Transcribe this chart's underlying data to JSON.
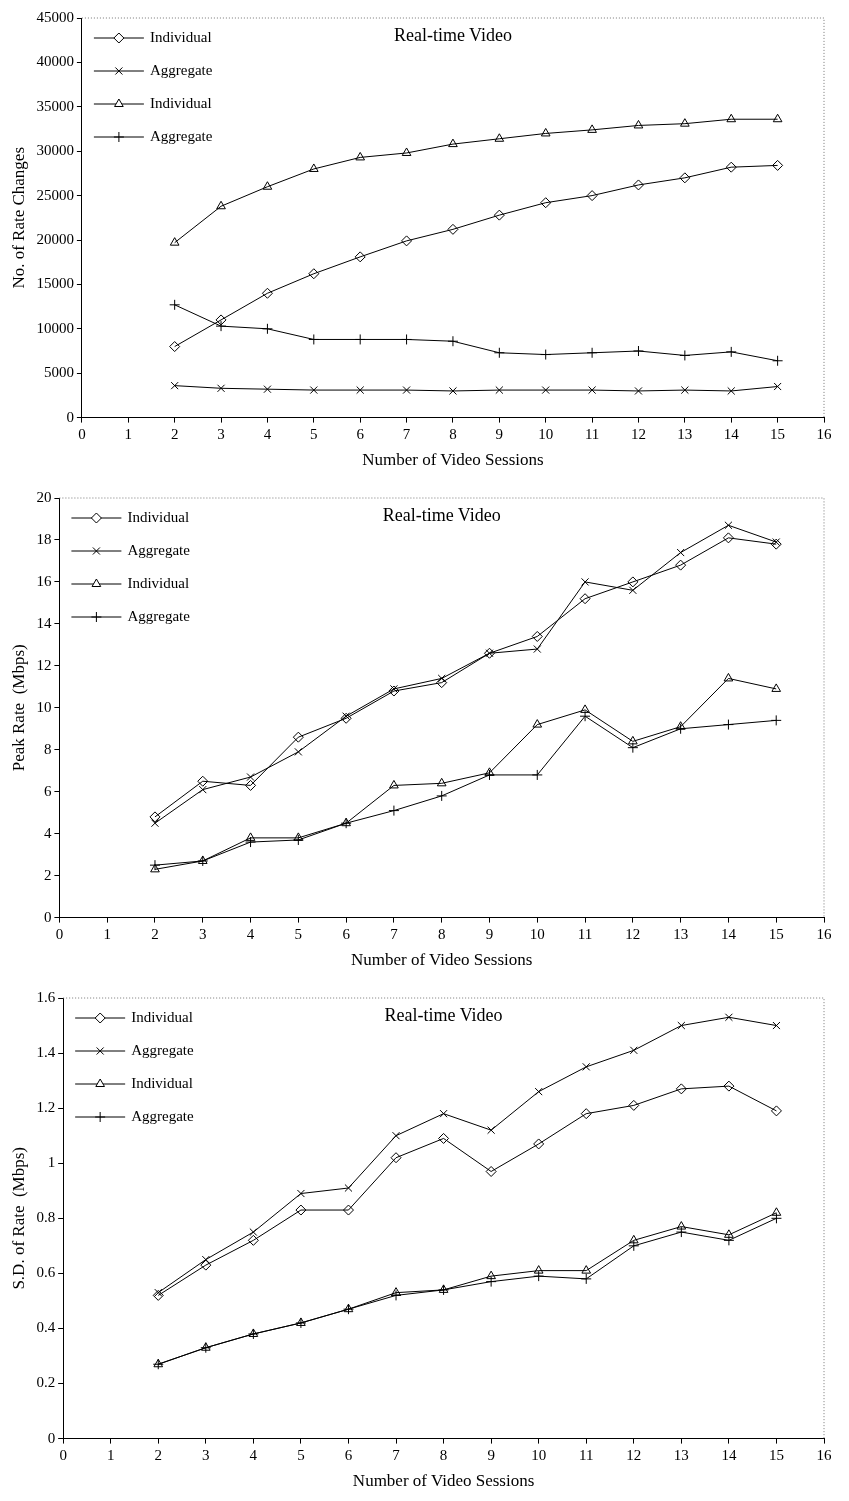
{
  "chart_data": [
    {
      "type": "line",
      "title": "Real-time Video",
      "xlabel": "Number of Video Sessions",
      "ylabel": "No. of Rate Changes",
      "x": [
        2,
        3,
        4,
        5,
        6,
        7,
        8,
        9,
        10,
        11,
        12,
        13,
        14,
        15
      ],
      "xlim": [
        0,
        16
      ],
      "xticks": [
        0,
        1,
        2,
        3,
        4,
        5,
        6,
        7,
        8,
        9,
        10,
        11,
        12,
        13,
        14,
        15,
        16
      ],
      "ylim": [
        0,
        45000
      ],
      "yticks": [
        0,
        5000,
        10000,
        15000,
        20000,
        25000,
        30000,
        35000,
        40000,
        45000
      ],
      "grid": false,
      "legend": "top left",
      "line_style": "solid",
      "series": [
        {
          "name": "Individual",
          "color": "#000000",
          "marker": "diamond",
          "values": [
            8000,
            11000,
            14000,
            16200,
            18100,
            19900,
            21200,
            22800,
            24200,
            25000,
            26200,
            27000,
            28200,
            28400
          ]
        },
        {
          "name": "Aggregate",
          "color": "#000000",
          "marker": "x",
          "values": [
            3600,
            3300,
            3200,
            3100,
            3100,
            3100,
            3000,
            3100,
            3100,
            3100,
            3000,
            3100,
            3000,
            3500
          ]
        },
        {
          "name": "Individual",
          "color": "#000000",
          "marker": "triangle",
          "values": [
            19700,
            23800,
            26000,
            28000,
            29300,
            29800,
            30800,
            31400,
            32000,
            32400,
            32900,
            33100,
            33600,
            33600
          ]
        },
        {
          "name": "Aggregate",
          "color": "#000000",
          "marker": "cross",
          "values": [
            12700,
            10300,
            10000,
            8800,
            8800,
            8800,
            8600,
            7300,
            7100,
            7300,
            7500,
            7000,
            7400,
            6400
          ]
        }
      ]
    },
    {
      "type": "line",
      "title": "Real-time Video",
      "xlabel": "Number of Video Sessions",
      "ylabel": "Peak Rate  (Mbps)",
      "x": [
        2,
        3,
        4,
        5,
        6,
        7,
        8,
        9,
        10,
        11,
        12,
        13,
        14,
        15
      ],
      "xlim": [
        0,
        16
      ],
      "xticks": [
        0,
        1,
        2,
        3,
        4,
        5,
        6,
        7,
        8,
        9,
        10,
        11,
        12,
        13,
        14,
        15,
        16
      ],
      "ylim": [
        0,
        20
      ],
      "yticks": [
        0,
        2,
        4,
        6,
        8,
        10,
        12,
        14,
        16,
        18,
        20
      ],
      "grid": false,
      "legend": "top left",
      "line_style": "solid",
      "series": [
        {
          "name": "Individual",
          "color": "#000000",
          "marker": "diamond",
          "values": [
            4.8,
            6.5,
            6.3,
            8.6,
            9.5,
            10.8,
            11.2,
            12.6,
            13.4,
            15.2,
            16.0,
            16.8,
            18.1,
            17.8
          ]
        },
        {
          "name": "Aggregate",
          "color": "#000000",
          "marker": "x",
          "values": [
            4.5,
            6.1,
            6.7,
            7.9,
            9.6,
            10.9,
            11.4,
            12.6,
            12.8,
            16.0,
            15.6,
            17.4,
            18.7,
            17.9
          ]
        },
        {
          "name": "Individual",
          "color": "#000000",
          "marker": "triangle",
          "values": [
            2.3,
            2.7,
            3.8,
            3.8,
            4.5,
            6.3,
            6.4,
            6.9,
            9.2,
            9.9,
            8.4,
            9.1,
            11.4,
            10.9
          ]
        },
        {
          "name": "Aggregate",
          "color": "#000000",
          "marker": "cross",
          "values": [
            2.5,
            2.7,
            3.6,
            3.7,
            4.5,
            5.1,
            5.8,
            6.8,
            6.8,
            9.6,
            8.1,
            9.0,
            9.2,
            9.4
          ]
        }
      ]
    },
    {
      "type": "line",
      "title": "Real-time Video",
      "xlabel": "Number of Video Sessions",
      "ylabel": "S.D. of Rate  (Mbps)",
      "x": [
        2,
        3,
        4,
        5,
        6,
        7,
        8,
        9,
        10,
        11,
        12,
        13,
        14,
        15
      ],
      "xlim": [
        0,
        16
      ],
      "xticks": [
        0,
        1,
        2,
        3,
        4,
        5,
        6,
        7,
        8,
        9,
        10,
        11,
        12,
        13,
        14,
        15,
        16
      ],
      "ylim": [
        0,
        1.6
      ],
      "yticks": [
        0,
        0.2,
        0.4,
        0.6,
        0.8,
        1,
        1.2,
        1.4,
        1.6
      ],
      "grid": false,
      "legend": "top left",
      "line_style": "solid",
      "series": [
        {
          "name": "Individual",
          "color": "#000000",
          "marker": "diamond",
          "values": [
            0.52,
            0.63,
            0.72,
            0.83,
            0.83,
            1.02,
            1.09,
            0.97,
            1.07,
            1.18,
            1.21,
            1.27,
            1.28,
            1.19
          ]
        },
        {
          "name": "Aggregate",
          "color": "#000000",
          "marker": "x",
          "values": [
            0.53,
            0.65,
            0.75,
            0.89,
            0.91,
            1.1,
            1.18,
            1.12,
            1.26,
            1.35,
            1.41,
            1.5,
            1.53,
            1.5
          ]
        },
        {
          "name": "Individual",
          "color": "#000000",
          "marker": "triangle",
          "values": [
            0.27,
            0.33,
            0.38,
            0.42,
            0.47,
            0.53,
            0.54,
            0.59,
            0.61,
            0.61,
            0.72,
            0.77,
            0.74,
            0.82
          ]
        },
        {
          "name": "Aggregate",
          "color": "#000000",
          "marker": "cross",
          "values": [
            0.27,
            0.33,
            0.38,
            0.42,
            0.47,
            0.52,
            0.54,
            0.57,
            0.59,
            0.58,
            0.7,
            0.75,
            0.72,
            0.8
          ]
        }
      ]
    }
  ]
}
